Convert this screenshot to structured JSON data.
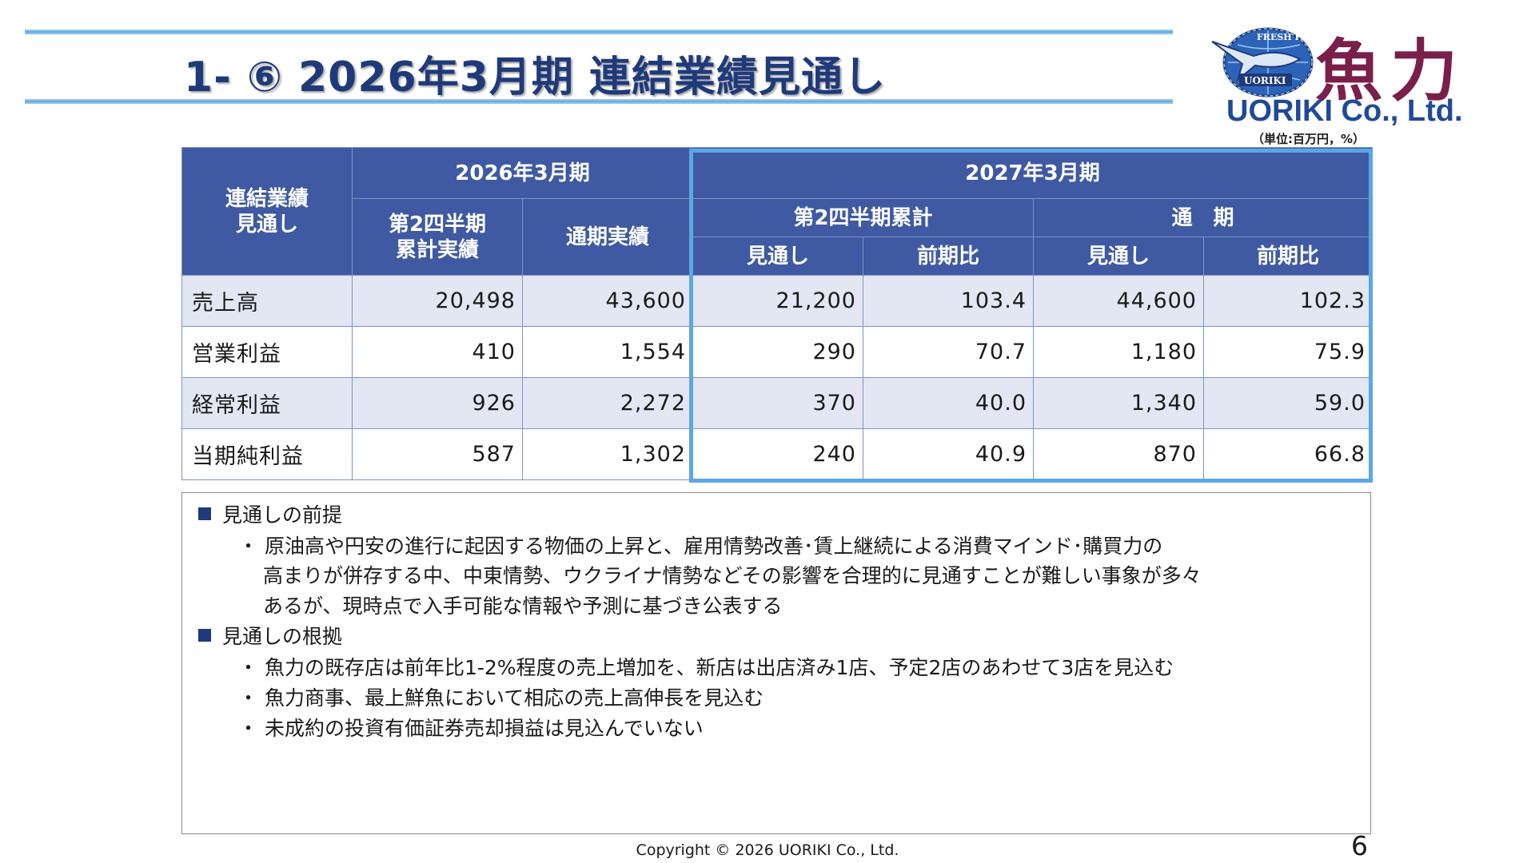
{
  "header": {
    "title": "1‐ ⑥ 2026年3月期 連結業績見通し"
  },
  "logo": {
    "name_jp": "魚力",
    "name_en": "UORIKI Co., Ltd.",
    "emblem_top_text": "FRESH FISH",
    "emblem_bottom_text": "UORIKI",
    "emblem_icon": "marlin-globe-icon"
  },
  "unit_note": "（単位:百万円，%）",
  "table": {
    "corner": "連結業績\n見通し",
    "group_2026": "2026年3月期",
    "group_2027": "2027年3月期",
    "col_2026_h1": "第2四半期\n累計実績",
    "col_2026_full": "通期実績",
    "sub_2027_h1": "第2四半期累計",
    "sub_2027_full": "通　期",
    "col_forecast": "見通し",
    "col_yoy": "前期比",
    "rows": [
      {
        "label": "売上高",
        "h1_2026": "20,498",
        "full_2026": "43,600",
        "h1_fc": "21,200",
        "h1_yoy": "103.4",
        "full_fc": "44,600",
        "full_yoy": "102.3"
      },
      {
        "label": "営業利益",
        "h1_2026": "410",
        "full_2026": "1,554",
        "h1_fc": "290",
        "h1_yoy": "70.7",
        "full_fc": "1,180",
        "full_yoy": "75.9"
      },
      {
        "label": "経常利益",
        "h1_2026": "926",
        "full_2026": "2,272",
        "h1_fc": "370",
        "h1_yoy": "40.0",
        "full_fc": "1,340",
        "full_yoy": "59.0"
      },
      {
        "label": "当期純利益",
        "h1_2026": "587",
        "full_2026": "1,302",
        "h1_fc": "240",
        "h1_yoy": "40.9",
        "full_fc": "870",
        "full_yoy": "66.8"
      }
    ]
  },
  "notes": {
    "premise_heading": "見通しの前提",
    "premise_lines": [
      "・ 原油高や円安の進行に起因する物価の上昇と、雇用情勢改善･賃上継続による消費マインド･購買力の",
      "高まりが併存する中、中東情勢、ウクライナ情勢などその影響を合理的に見通すことが難しい事象が多々",
      "あるが、現時点で入手可能な情報や予測に基づき公表する"
    ],
    "basis_heading": "見通しの根拠",
    "basis_lines": [
      "・ 魚力の既存店は前年比1‐2%程度の売上増加を、新店は出店済み1店、予定2店のあわせて3店を見込む",
      "・ 魚力商事、最上鮮魚において相応の売上高伸長を見込む",
      "・ 未成約の投資有価証券売却損益は見込んでいない"
    ]
  },
  "footer": {
    "copyright": "Copyright © 2026 UORIKI Co., Ltd.",
    "page_number": "6"
  },
  "colors": {
    "header_bg": "#3f5aa3",
    "title": "#1f3a7a",
    "highlight_border": "#5aa7e6",
    "row_shade": "#e3e7f3",
    "logo_jp": "#7a1f4a"
  }
}
